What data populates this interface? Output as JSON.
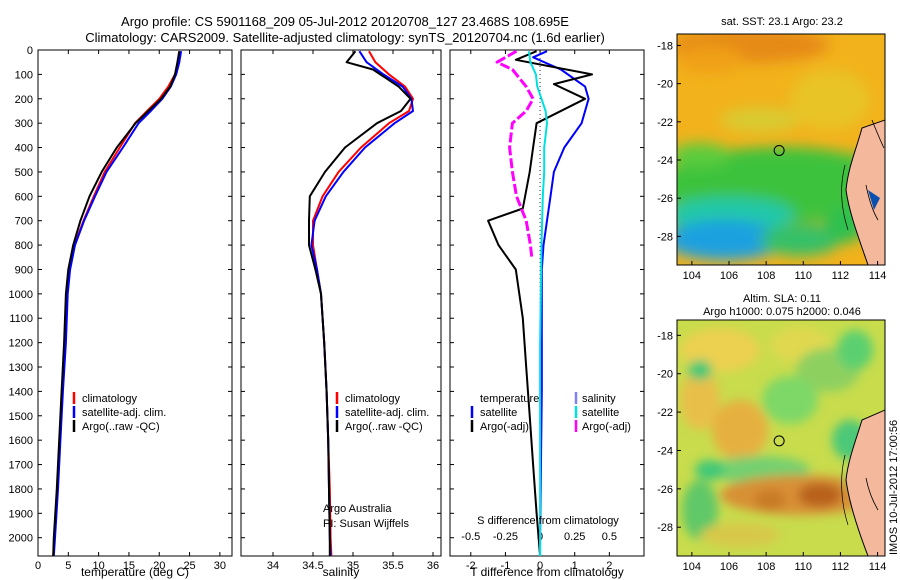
{
  "header": {
    "title_line1": "Argo profile: CS 5901168_209 05-Jul-2012 20120708_127 23.468S 108.695E",
    "title_line2": "Climatology: CARS2009. Satellite-adjusted climatology: synTS_20120704.nc (1.6d earlier)"
  },
  "colors": {
    "climatology": "#ff0000",
    "satellite": "#0000ff",
    "argo": "#000000",
    "sat_salinity": "#00e0e0",
    "argo_adj_salinity": "#ff00ff"
  },
  "chart_data": [
    {
      "id": "temperature",
      "type": "line",
      "xlabel": "temperature (deg C)",
      "xlim": [
        0,
        32
      ],
      "xticks": [
        0,
        5,
        10,
        15,
        20,
        25,
        30
      ],
      "ylim": [
        0,
        2075
      ],
      "yticks": [
        0,
        100,
        200,
        300,
        400,
        500,
        600,
        700,
        800,
        900,
        1000,
        1100,
        1200,
        1300,
        1400,
        1500,
        1600,
        1700,
        1800,
        1900,
        2000
      ],
      "legend": [
        "climatology",
        "satellite-adj. clim.",
        "Argo(..raw -QC)"
      ],
      "series": [
        {
          "name": "climatology",
          "points": [
            [
              23.4,
              5
            ],
            [
              23.2,
              50
            ],
            [
              22.6,
              100
            ],
            [
              21.5,
              150
            ],
            [
              20,
              200
            ],
            [
              18,
              250
            ],
            [
              16,
              300
            ],
            [
              13.5,
              400
            ],
            [
              11,
              500
            ],
            [
              9.2,
              600
            ],
            [
              7.5,
              700
            ],
            [
              6,
              800
            ],
            [
              5.2,
              900
            ],
            [
              4.8,
              1000
            ],
            [
              4.5,
              1200
            ],
            [
              4,
              1400
            ],
            [
              3.6,
              1600
            ],
            [
              3.2,
              1800
            ],
            [
              2.7,
              2000
            ],
            [
              2.5,
              2075
            ]
          ]
        },
        {
          "name": "satellite-adj. clim.",
          "points": [
            [
              23.6,
              5
            ],
            [
              23.3,
              50
            ],
            [
              22.8,
              100
            ],
            [
              21.9,
              150
            ],
            [
              20.5,
              200
            ],
            [
              18.6,
              250
            ],
            [
              16.6,
              300
            ],
            [
              14,
              400
            ],
            [
              11.3,
              500
            ],
            [
              9.4,
              600
            ],
            [
              7.6,
              700
            ],
            [
              6.1,
              800
            ],
            [
              5.3,
              900
            ],
            [
              4.9,
              1000
            ],
            [
              4.6,
              1200
            ],
            [
              4.1,
              1400
            ],
            [
              3.7,
              1600
            ],
            [
              3.3,
              1800
            ],
            [
              2.8,
              2000
            ],
            [
              2.6,
              2075
            ]
          ]
        },
        {
          "name": "Argo(..raw -QC)",
          "points": [
            [
              23.3,
              5
            ],
            [
              23,
              50
            ],
            [
              22.6,
              100
            ],
            [
              21.8,
              150
            ],
            [
              20.3,
              200
            ],
            [
              18.2,
              250
            ],
            [
              16.1,
              300
            ],
            [
              13,
              400
            ],
            [
              10.5,
              500
            ],
            [
              8.5,
              600
            ],
            [
              7,
              700
            ],
            [
              5.8,
              800
            ],
            [
              5,
              900
            ],
            [
              4.6,
              1000
            ],
            [
              4.3,
              1200
            ],
            [
              3.9,
              1400
            ],
            [
              3.5,
              1600
            ],
            [
              3.1,
              1800
            ],
            [
              2.6,
              2000
            ],
            [
              2.5,
              2075
            ]
          ]
        }
      ]
    },
    {
      "id": "salinity",
      "type": "line",
      "xlabel": "salinity",
      "xlim": [
        33.6,
        36.1
      ],
      "xticks": [
        34,
        34.5,
        35,
        35.5,
        36
      ],
      "ylim": [
        0,
        2075
      ],
      "legend": [
        "climatology",
        "satellite-adj. clim.",
        "Argo(..raw -QC)"
      ],
      "annotation": [
        "Argo Australia",
        "PI: Susan Wijffels"
      ],
      "series": [
        {
          "name": "climatology",
          "points": [
            [
              35.2,
              5
            ],
            [
              35.28,
              50
            ],
            [
              35.45,
              100
            ],
            [
              35.65,
              150
            ],
            [
              35.75,
              200
            ],
            [
              35.7,
              250
            ],
            [
              35.45,
              300
            ],
            [
              35.1,
              400
            ],
            [
              34.82,
              500
            ],
            [
              34.62,
              600
            ],
            [
              34.5,
              700
            ],
            [
              34.5,
              800
            ],
            [
              34.55,
              900
            ],
            [
              34.6,
              1000
            ],
            [
              34.64,
              1200
            ],
            [
              34.67,
              1400
            ],
            [
              34.69,
              1600
            ],
            [
              34.71,
              1800
            ],
            [
              34.72,
              2000
            ],
            [
              34.73,
              2075
            ]
          ]
        },
        {
          "name": "satellite-adj. clim.",
          "points": [
            [
              35.08,
              5
            ],
            [
              35.17,
              50
            ],
            [
              35.38,
              100
            ],
            [
              35.62,
              150
            ],
            [
              35.73,
              200
            ],
            [
              35.75,
              250
            ],
            [
              35.52,
              300
            ],
            [
              35.15,
              400
            ],
            [
              34.88,
              500
            ],
            [
              34.66,
              600
            ],
            [
              34.52,
              700
            ],
            [
              34.48,
              800
            ],
            [
              34.55,
              900
            ],
            [
              34.6,
              1000
            ],
            [
              34.64,
              1200
            ],
            [
              34.67,
              1400
            ],
            [
              34.69,
              1600
            ],
            [
              34.7,
              1800
            ],
            [
              34.71,
              2000
            ],
            [
              34.72,
              2075
            ]
          ]
        },
        {
          "name": "Argo(..raw -QC)",
          "points": [
            [
              35.03,
              5
            ],
            [
              34.92,
              50
            ],
            [
              35.25,
              80
            ],
            [
              35.57,
              150
            ],
            [
              35.72,
              200
            ],
            [
              35.6,
              250
            ],
            [
              35.3,
              300
            ],
            [
              34.9,
              400
            ],
            [
              34.65,
              500
            ],
            [
              34.46,
              600
            ],
            [
              34.45,
              700
            ],
            [
              34.45,
              800
            ],
            [
              34.53,
              900
            ],
            [
              34.6,
              1000
            ],
            [
              34.64,
              1200
            ],
            [
              34.67,
              1400
            ],
            [
              34.69,
              1600
            ],
            [
              34.7,
              1800
            ],
            [
              34.71,
              2000
            ],
            [
              34.71,
              2075
            ]
          ]
        }
      ]
    },
    {
      "id": "difference",
      "type": "line",
      "xlabel": "T difference from climatology",
      "xlabel_top": "S difference from climatology",
      "xlim": [
        -2.6,
        3
      ],
      "xticks": [
        -2,
        -1,
        0,
        1,
        2
      ],
      "sticks_scale": 4,
      "sticks": [
        -0.5,
        -0.25,
        0,
        0.25,
        0.5
      ],
      "stick_labels": [
        "-0.5",
        "-0.25",
        "0",
        "0.25",
        "0.5"
      ],
      "legend_left_title": "temperature",
      "legend_left": [
        "satellite",
        "Argo(-adj)"
      ],
      "legend_right_title": "salinity",
      "legend_right": [
        "satellite",
        "Argo(-adj)"
      ],
      "series": [
        {
          "name": "satellite",
          "kind": "T",
          "points": [
            [
              0.2,
              5
            ],
            [
              -0.2,
              30
            ],
            [
              0.6,
              80
            ],
            [
              1.3,
              150
            ],
            [
              1.4,
              200
            ],
            [
              1.2,
              300
            ],
            [
              0.7,
              400
            ],
            [
              0.4,
              500
            ],
            [
              0.3,
              600
            ],
            [
              0.2,
              700
            ],
            [
              0.1,
              800
            ],
            [
              0.05,
              900
            ],
            [
              0.05,
              1000
            ],
            [
              0.05,
              1400
            ],
            [
              0,
              2000
            ],
            [
              0,
              2075
            ]
          ]
        },
        {
          "name": "Argo(-adj)",
          "kind": "T",
          "points": [
            [
              -0.1,
              5
            ],
            [
              -0.7,
              40
            ],
            [
              1.5,
              100
            ],
            [
              0.4,
              140
            ],
            [
              1.3,
              200
            ],
            [
              -0.1,
              300
            ],
            [
              -0.2,
              400
            ],
            [
              -0.3,
              500
            ],
            [
              -0.5,
              650
            ],
            [
              -1.5,
              700
            ],
            [
              -1.2,
              800
            ],
            [
              -0.7,
              900
            ],
            [
              -0.5,
              1100
            ],
            [
              -0.4,
              1300
            ],
            [
              -0.3,
              1500
            ],
            [
              -0.2,
              1700
            ],
            [
              -0.1,
              1900
            ],
            [
              0,
              2075
            ]
          ]
        },
        {
          "name": "satellite",
          "kind": "S",
          "points": [
            [
              -0.08,
              5
            ],
            [
              -0.07,
              50
            ],
            [
              -0.03,
              100
            ],
            [
              -0.02,
              150
            ],
            [
              0.01,
              200
            ],
            [
              0.04,
              250
            ],
            [
              0.05,
              300
            ],
            [
              0.03,
              400
            ],
            [
              0.03,
              500
            ],
            [
              0.02,
              600
            ],
            [
              0.01,
              800
            ],
            [
              0,
              1200
            ],
            [
              0,
              2075
            ]
          ]
        },
        {
          "name": "Argo(-adj)",
          "kind": "S",
          "points": [
            [
              -0.17,
              5
            ],
            [
              -0.31,
              50
            ],
            [
              -0.2,
              80
            ],
            [
              -0.1,
              150
            ],
            [
              -0.05,
              200
            ],
            [
              -0.1,
              250
            ],
            [
              -0.2,
              300
            ],
            [
              -0.22,
              400
            ],
            [
              -0.2,
              500
            ],
            [
              -0.17,
              600
            ],
            [
              -0.1,
              700
            ],
            [
              -0.07,
              800
            ],
            [
              -0.06,
              850
            ]
          ]
        }
      ]
    }
  ],
  "maps": [
    {
      "id": "sst",
      "title": "sat. SST: 23.1 Argo: 23.2",
      "xlim": [
        103.2,
        114.4
      ],
      "ylim": [
        -29.5,
        -17.4
      ],
      "xticks": [
        104,
        106,
        108,
        110,
        112,
        114
      ],
      "yticks": [
        -18,
        -20,
        -22,
        -24,
        -26,
        -28
      ],
      "argo_position": [
        108.7,
        -23.5
      ]
    },
    {
      "id": "sla",
      "title_line1": "Altim. SLA: 0.11",
      "title_line2": "Argo h1000: 0.075 h2000: 0.046",
      "xlim": [
        103.2,
        114.4
      ],
      "ylim": [
        -29.5,
        -17.2
      ],
      "xticks": [
        104,
        106,
        108,
        110,
        112,
        114
      ],
      "yticks": [
        -18,
        -20,
        -22,
        -24,
        -26,
        -28
      ],
      "argo_position": [
        108.7,
        -23.5
      ]
    }
  ],
  "footer": {
    "stamp": "IMOS 10-Jul-2012 17:00:56"
  }
}
